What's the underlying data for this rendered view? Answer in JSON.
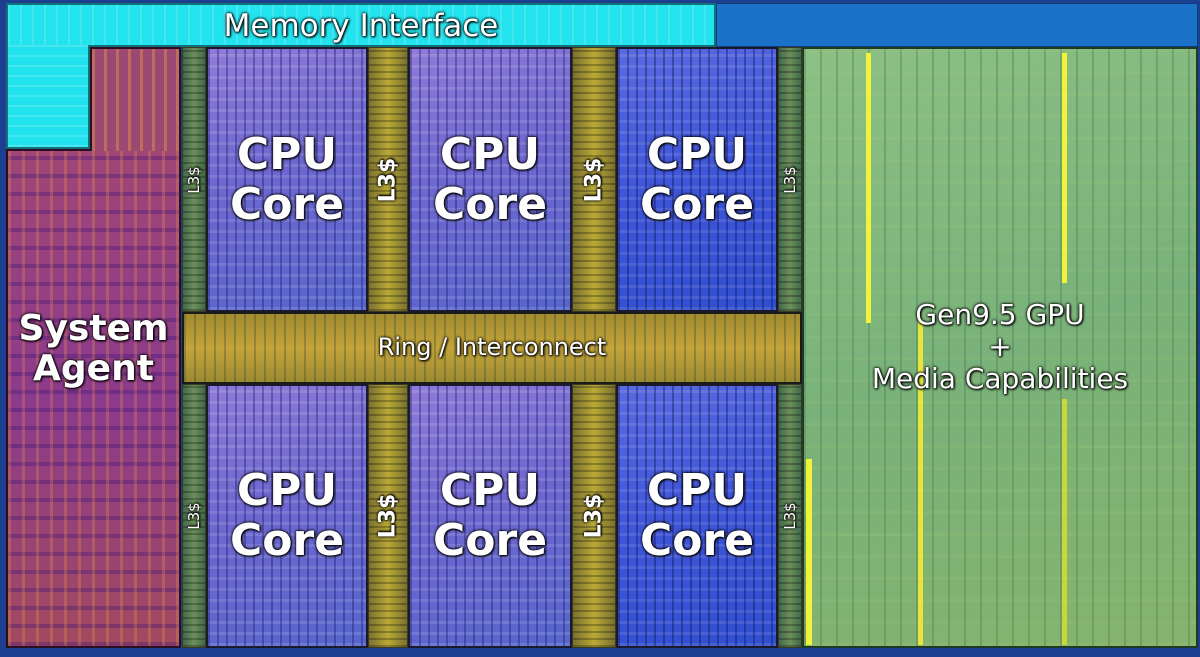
{
  "memory_interface": {
    "label": "Memory Interface"
  },
  "system_agent": {
    "label": "System Agent"
  },
  "ring": {
    "label": "Ring / Interconnect"
  },
  "gpu": {
    "line1": "Gen9.5 GPU",
    "line2": "+",
    "line3": "Media Capabilities"
  },
  "cores": [
    {
      "label": "CPU Core"
    },
    {
      "label": "CPU Core"
    },
    {
      "label": "CPU Core"
    },
    {
      "label": "CPU Core"
    },
    {
      "label": "CPU Core"
    },
    {
      "label": "CPU Core"
    }
  ],
  "l3": [
    {
      "label": "L3$"
    },
    {
      "label": "L3$"
    },
    {
      "label": "L3$"
    },
    {
      "label": "L3$"
    },
    {
      "label": "L3$"
    },
    {
      "label": "L3$"
    },
    {
      "label": "L3$"
    },
    {
      "label": "L3$"
    }
  ],
  "colors": {
    "memory_interface": "#26e6ef",
    "system_agent": "#9a3f6e",
    "ring": "#b59a35",
    "gpu": "#7fb57a",
    "cpu_core": "#7a6fd6",
    "l3_cache": "#b9a935"
  }
}
